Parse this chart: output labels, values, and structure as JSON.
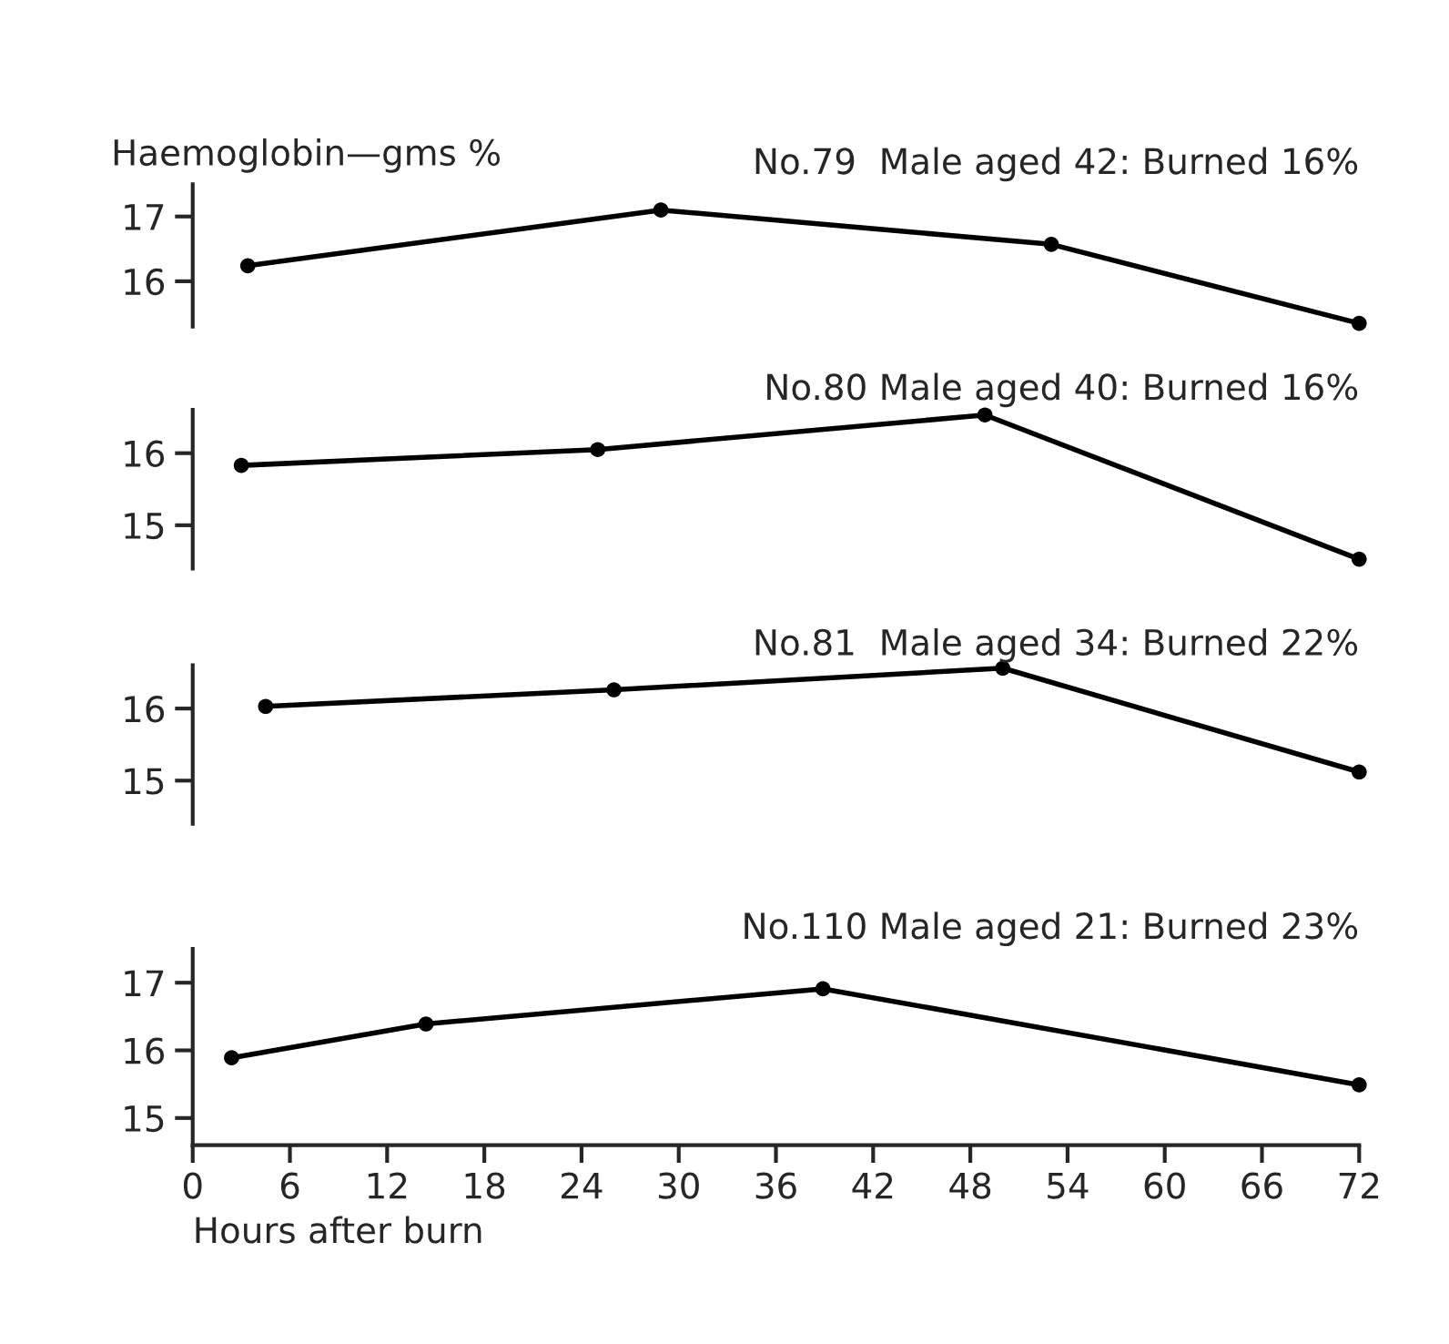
{
  "chart_data": [
    {
      "type": "line",
      "title": "No.79  Male aged 42: Burned 16%",
      "ylabel": "Haemoglobin—gms %",
      "x": [
        3.4,
        28.9,
        53,
        72
      ],
      "series": [
        {
          "color": "#000000",
          "values": [
            16.24,
            17.1,
            16.57,
            15.35
          ]
        }
      ],
      "xlim": [
        0,
        72
      ],
      "ylim": [
        15.3,
        17.5
      ],
      "yticks": [
        16,
        17
      ],
      "marker": "circle",
      "tick_labels": "y",
      "grid": false,
      "legend": false
    },
    {
      "type": "line",
      "title": "No.80 Male aged 40: Burned 16%",
      "x": [
        3.0,
        25,
        48.9,
        72
      ],
      "series": [
        {
          "color": "#000000",
          "values": [
            15.83,
            16.05,
            16.53,
            14.53
          ]
        }
      ],
      "xlim": [
        0,
        72
      ],
      "ylim": [
        14.4,
        16.6
      ],
      "yticks": [
        15,
        16
      ],
      "marker": "circle",
      "tick_labels": "y",
      "grid": false,
      "legend": false
    },
    {
      "type": "line",
      "title": "No.81  Male aged 34: Burned 22%",
      "x": [
        4.5,
        26,
        50,
        72
      ],
      "series": [
        {
          "color": "#000000",
          "values": [
            16.03,
            16.26,
            16.56,
            15.12
          ]
        }
      ],
      "xlim": [
        0,
        72
      ],
      "ylim": [
        14.4,
        16.6
      ],
      "yticks": [
        15,
        16
      ],
      "marker": "circle",
      "tick_labels": "y",
      "grid": false,
      "legend": false
    },
    {
      "type": "line",
      "title": "No.110 Male aged 21: Burned 23%",
      "xlabel": "Hours after burn",
      "x": [
        2.4,
        14.4,
        38.9,
        72
      ],
      "series": [
        {
          "color": "#000000",
          "values": [
            15.89,
            16.39,
            16.91,
            15.49
          ]
        }
      ],
      "xlim": [
        0,
        72
      ],
      "ylim": [
        14.6,
        17.5
      ],
      "yticks": [
        15,
        16,
        17
      ],
      "xticks": [
        0,
        6,
        12,
        18,
        24,
        30,
        36,
        42,
        48,
        54,
        60,
        66,
        72
      ],
      "marker": "circle",
      "grid": false,
      "legend": false
    }
  ]
}
